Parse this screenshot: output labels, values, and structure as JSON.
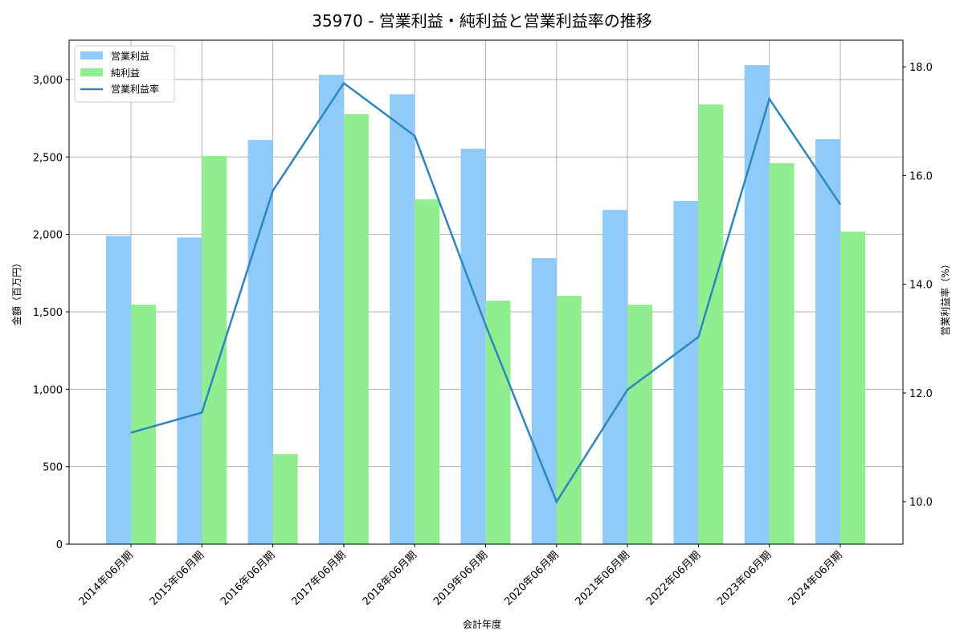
{
  "chart_data": {
    "type": "bar",
    "title": "35970 - 営業利益・純利益と営業利益率の推移",
    "xlabel": "会計年度",
    "ylabel": "金額（百万円）",
    "y2label": "営業利益率（%）",
    "categories": [
      "2014年06月期",
      "2015年06月期",
      "2016年06月期",
      "2017年06月期",
      "2018年06月期",
      "2019年06月期",
      "2020年06月期",
      "2021年06月期",
      "2022年06月期",
      "2023年06月期",
      "2024年06月期"
    ],
    "series": [
      {
        "name": "営業利益",
        "type": "bar",
        "axis": "left",
        "color": "#90caf9",
        "values": [
          1990,
          1980,
          2610,
          3030,
          2905,
          2553,
          1847,
          2158,
          2216,
          3093,
          2615
        ]
      },
      {
        "name": "純利益",
        "type": "bar",
        "axis": "left",
        "color": "#90ee90",
        "values": [
          1546,
          2506,
          581,
          2776,
          2226,
          1572,
          1603,
          1546,
          2839,
          2460,
          2018
        ]
      },
      {
        "name": "営業利益率",
        "type": "line",
        "axis": "right",
        "color": "#2e86c1",
        "values": [
          11.27,
          11.64,
          15.72,
          17.7,
          16.73,
          13.25,
          10.0,
          12.06,
          13.03,
          17.41,
          15.47
        ]
      }
    ],
    "ylim": [
      0,
      3254
    ],
    "y2lim": [
      9.22,
      18.49
    ],
    "yticks": [
      0,
      500,
      1000,
      1500,
      2000,
      2500,
      3000
    ],
    "ytick_labels": [
      "0",
      "500",
      "1,000",
      "1,500",
      "2,000",
      "2,500",
      "3,000"
    ],
    "y2ticks": [
      10.0,
      12.0,
      14.0,
      16.0,
      18.0
    ],
    "y2tick_labels": [
      "10.0",
      "12.0",
      "14.0",
      "16.0",
      "18.0"
    ],
    "grid": true,
    "legend_position": "upper left"
  }
}
